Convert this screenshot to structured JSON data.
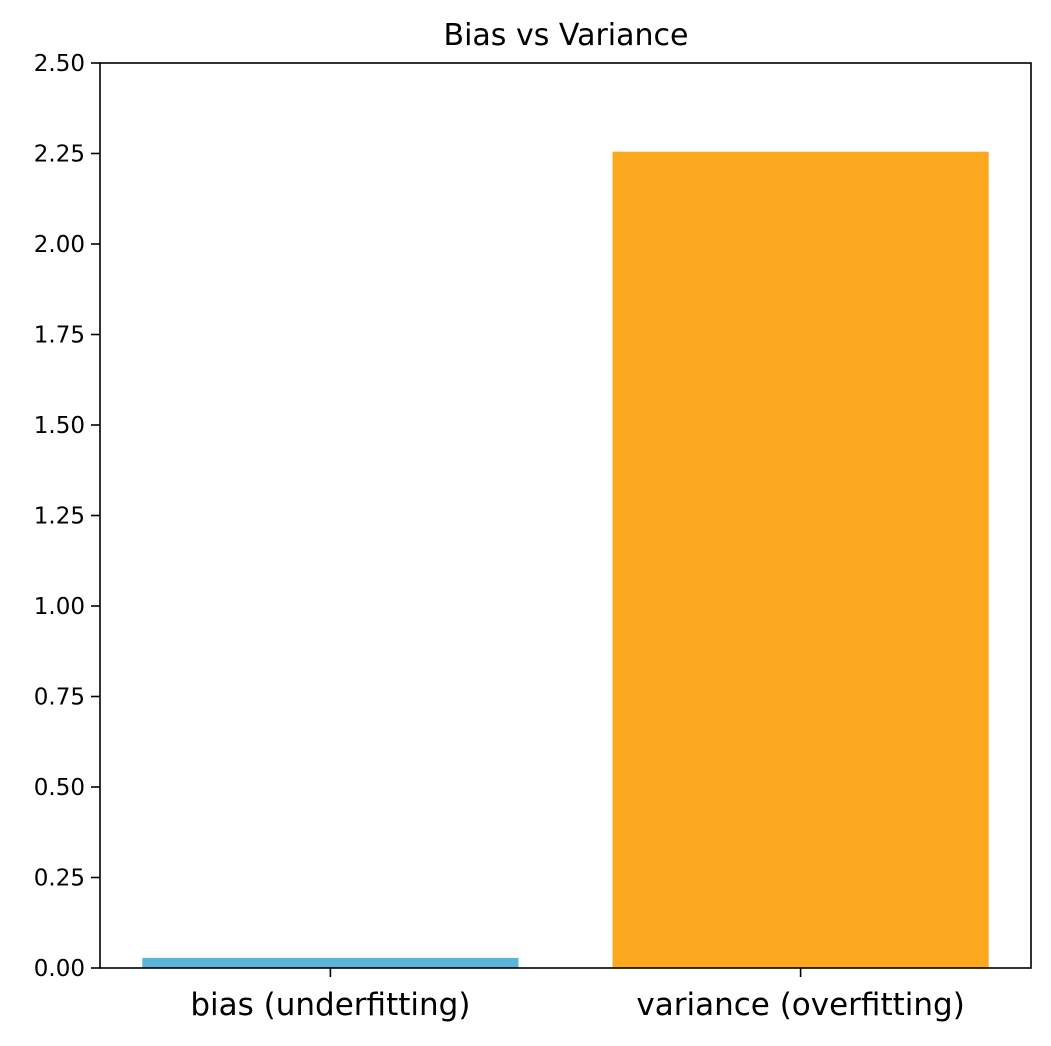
{
  "chart_data": {
    "type": "bar",
    "title": "Bias vs Variance",
    "xlabel": "",
    "ylabel": "",
    "categories": [
      "bias (underfitting)",
      "variance (overfitting)"
    ],
    "values": [
      0.028,
      2.255
    ],
    "colors": [
      "#5bb5d8",
      "#fba81e"
    ],
    "ylim": [
      0,
      2.5
    ],
    "yticks": [
      0.0,
      0.25,
      0.5,
      0.75,
      1.0,
      1.25,
      1.5,
      1.75,
      2.0,
      2.25,
      2.5
    ],
    "ytick_labels": [
      "0.00",
      "0.25",
      "0.50",
      "0.75",
      "1.00",
      "1.25",
      "1.50",
      "1.75",
      "2.00",
      "2.25",
      "2.50"
    ],
    "grid": false,
    "legend": "none"
  }
}
